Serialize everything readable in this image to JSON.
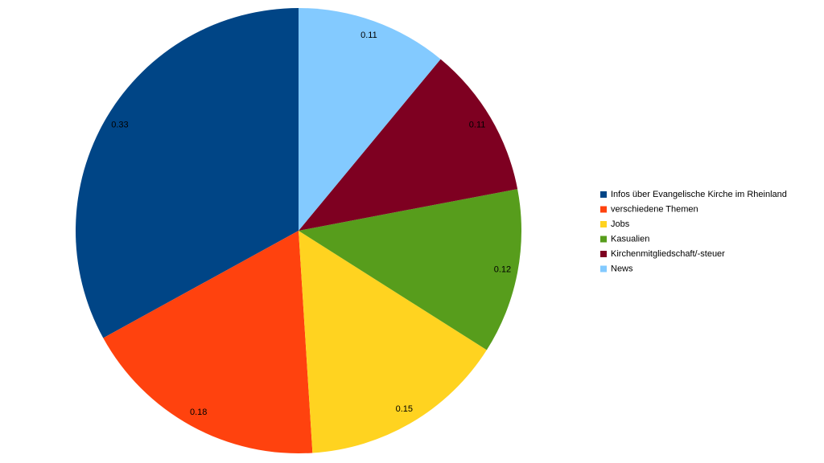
{
  "chart_data": {
    "type": "pie",
    "categories": [
      "Infos über Evangelische Kirche im Rheinland",
      "verschiedene Themen",
      "Jobs",
      "Kasualien",
      "Kirchenmitgliedschaft/-steuer",
      "News"
    ],
    "values": [
      0.33,
      0.18,
      0.15,
      0.12,
      0.11,
      0.11
    ],
    "colors": [
      "#004586",
      "#ff420e",
      "#ffd320",
      "#579d1c",
      "#7e0021",
      "#83caff"
    ],
    "direction": "counterclockwise",
    "legend": "right"
  }
}
